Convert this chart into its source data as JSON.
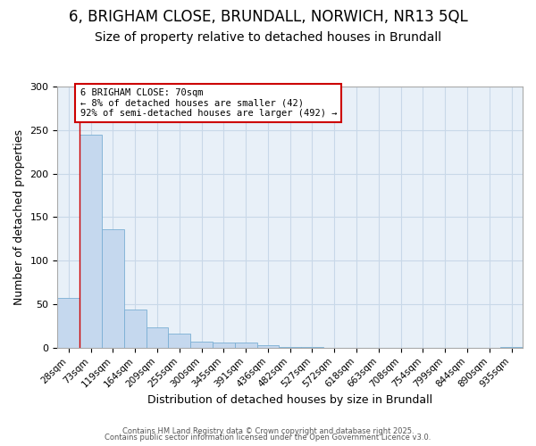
{
  "title1": "6, BRIGHAM CLOSE, BRUNDALL, NORWICH, NR13 5QL",
  "title2": "Size of property relative to detached houses in Brundall",
  "xlabel": "Distribution of detached houses by size in Brundall",
  "ylabel": "Number of detached properties",
  "categories": [
    "28sqm",
    "73sqm",
    "119sqm",
    "164sqm",
    "209sqm",
    "255sqm",
    "300sqm",
    "345sqm",
    "391sqm",
    "436sqm",
    "482sqm",
    "527sqm",
    "572sqm",
    "618sqm",
    "663sqm",
    "708sqm",
    "754sqm",
    "799sqm",
    "844sqm",
    "890sqm",
    "935sqm"
  ],
  "values": [
    57,
    245,
    136,
    44,
    23,
    16,
    7,
    6,
    6,
    3,
    1,
    1,
    0,
    0,
    0,
    0,
    0,
    0,
    0,
    0,
    1
  ],
  "bar_color": "#c5d8ee",
  "bar_edge_color": "#7aafd4",
  "grid_color": "#c8d8e8",
  "annotation_text": "6 BRIGHAM CLOSE: 70sqm\n← 8% of detached houses are smaller (42)\n92% of semi-detached houses are larger (492) →",
  "annotation_box_color": "#ffffff",
  "annotation_edge_color": "#cc0000",
  "red_line_x": 0.5,
  "ylim": [
    0,
    300
  ],
  "yticks": [
    0,
    50,
    100,
    150,
    200,
    250,
    300
  ],
  "footer1": "Contains HM Land Registry data © Crown copyright and database right 2025.",
  "footer2": "Contains public sector information licensed under the Open Government Licence v3.0.",
  "bg_color": "#e8f0f8",
  "fig_bg_color": "#ffffff",
  "title_fontsize": 12,
  "subtitle_fontsize": 10
}
